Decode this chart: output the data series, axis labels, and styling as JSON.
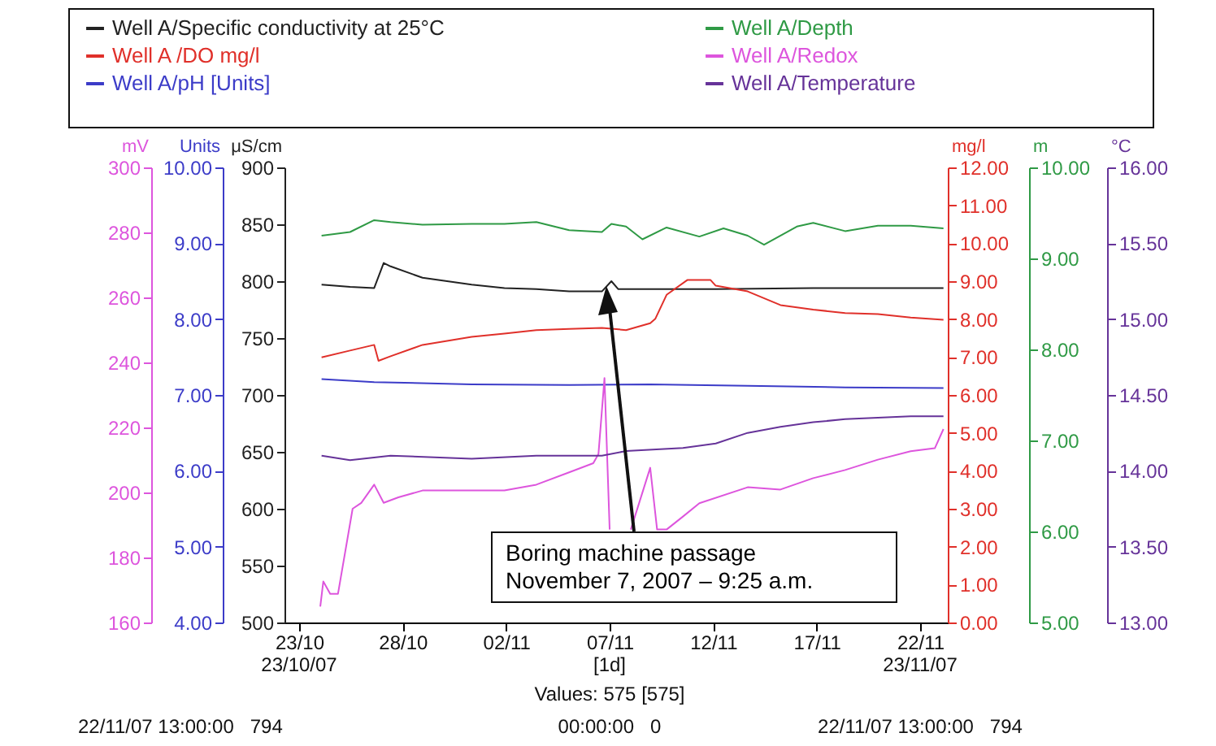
{
  "chart_data": [
    {
      "type": "line",
      "xlim": [
        "2007-10-22T07:00",
        "2007-11-23T08:00"
      ],
      "xticks": [
        {
          "value": "2007-10-23",
          "label": "23/10"
        },
        {
          "value": "2007-10-28",
          "label": "28/10"
        },
        {
          "value": "2007-11-02",
          "label": "02/11"
        },
        {
          "value": "2007-11-07",
          "label": "07/11"
        },
        {
          "value": "2007-11-12",
          "label": "12/11"
        },
        {
          "value": "2007-11-17",
          "label": "17/11"
        },
        {
          "value": "2007-11-22",
          "label": "22/11"
        }
      ],
      "ylabel": "Units",
      "ylim": [
        4,
        10
      ],
      "yticks": [
        {
          "value": 4,
          "label": "4.00"
        },
        {
          "value": 5,
          "label": "5.00"
        },
        {
          "value": 6,
          "label": "6.00"
        },
        {
          "value": 7,
          "label": "7.00"
        },
        {
          "value": 8,
          "label": "8.00"
        },
        {
          "value": 9,
          "label": "9.00"
        },
        {
          "value": 10,
          "label": "10.00"
        }
      ],
      "y2label": "mg/l",
      "y2lim": [
        0,
        12
      ],
      "y2ticks": [
        {
          "value": 0,
          "label": "0.00"
        },
        {
          "value": 1,
          "label": "1.00"
        },
        {
          "value": 2,
          "label": "2.00"
        },
        {
          "value": 3,
          "label": "3.00"
        },
        {
          "value": 4,
          "label": "4.00"
        },
        {
          "value": 5,
          "label": "5.00"
        },
        {
          "value": 6,
          "label": "6.00"
        },
        {
          "value": 7,
          "label": "7.00"
        },
        {
          "value": 8,
          "label": "8.00"
        },
        {
          "value": 9,
          "label": "9.00"
        },
        {
          "value": 10,
          "label": "10.00"
        },
        {
          "value": 11,
          "label": "11.00"
        },
        {
          "value": 12,
          "label": "12.00"
        }
      ],
      "y3label": "μS/cm",
      "y3lim": [
        500,
        900
      ],
      "y3ticks": [
        500,
        550,
        600,
        650,
        700,
        750,
        800,
        850,
        900
      ],
      "legend": "top",
      "series": [
        {
          "name": "Well A/Specific conductivity at 25°C",
          "color": "#222222",
          "axis": "y3",
          "x": [
            "2007-10-24T02:00",
            "2007-10-25T11:00",
            "2007-10-26T15:00",
            "2007-10-27T02:00",
            "2007-10-27T10:00",
            "2007-10-28T23:00",
            "2007-10-31T08:00",
            "2007-11-01T22:00",
            "2007-11-03T11:00",
            "2007-11-05T01:00",
            "2007-11-06T15:00",
            "2007-11-07T02:00",
            "2007-11-07T10:00",
            "2007-11-08T23:00",
            "2007-11-12T03:00",
            "2007-11-16T20:00",
            "2007-11-23T03:00"
          ],
          "values": [
            797,
            795,
            794,
            816,
            813,
            803,
            797,
            794,
            793,
            791,
            791,
            800,
            793,
            793,
            793,
            794,
            794
          ]
        },
        {
          "name": "Well A /DO mg/l",
          "color": "#e0302a",
          "axis": "y2",
          "x": [
            "2007-10-24T02:00",
            "2007-10-25T11:00",
            "2007-10-26T15:00",
            "2007-10-26T20:00",
            "2007-10-27T10:00",
            "2007-10-28T23:00",
            "2007-10-31T08:00",
            "2007-11-01T22:00",
            "2007-11-03T11:00",
            "2007-11-05T01:00",
            "2007-11-06T15:00",
            "2007-11-07T19:00",
            "2007-11-08T23:00",
            "2007-11-09T05:00",
            "2007-11-09T18:00",
            "2007-11-10T18:00",
            "2007-11-11T21:00",
            "2007-11-12T03:00",
            "2007-11-13T16:00",
            "2007-11-15T06:00",
            "2007-11-16T20:00",
            "2007-11-18T09:00",
            "2007-11-19T23:00",
            "2007-11-21T13:00",
            "2007-11-23T03:00"
          ],
          "values": [
            6.99,
            7.17,
            7.32,
            6.9,
            7.02,
            7.32,
            7.53,
            7.62,
            7.71,
            7.74,
            7.77,
            7.71,
            7.89,
            8.01,
            8.64,
            9.03,
            9.03,
            8.88,
            8.73,
            8.37,
            8.25,
            8.16,
            8.13,
            8.04,
            7.98
          ]
        },
        {
          "name": "Well A/pH [Units]",
          "color": "#3c3cc8",
          "axis": "y",
          "x": [
            "2007-10-24T02:00",
            "2007-10-26T15:00",
            "2007-10-31T08:00",
            "2007-11-05T01:00",
            "2007-11-08T23:00",
            "2007-11-13T16:00",
            "2007-11-18T09:00",
            "2007-11-23T03:00"
          ],
          "values": [
            7.21,
            7.17,
            7.14,
            7.13,
            7.14,
            7.12,
            7.1,
            7.09
          ]
        }
      ],
      "annotations": [
        "Boring machine passage\nNovember 7, 2007 – 9:25 a.m.",
        "23/10/07",
        "[1d]",
        "23/11/07",
        "Values: 575 [575]",
        "22/11/07 13:00:00   794",
        "00:00:00   0",
        "22/11/07 13:00:00   794"
      ]
    },
    {
      "type": "line",
      "xlim": [
        "2007-10-22T07:00",
        "2007-11-23T08:00"
      ],
      "tick_labels": "y",
      "ylabel": "mV",
      "ylim": [
        160,
        300
      ],
      "yticks": [
        160,
        180,
        200,
        220,
        240,
        260,
        280,
        300
      ],
      "y2label": "m",
      "y2lim": [
        5,
        10
      ],
      "y2ticks": [
        {
          "value": 5,
          "label": "5.00"
        },
        {
          "value": 6,
          "label": "6.00"
        },
        {
          "value": 7,
          "label": "7.00"
        },
        {
          "value": 8,
          "label": "8.00"
        },
        {
          "value": 9,
          "label": "9.00"
        },
        {
          "value": 10,
          "label": "10.00"
        }
      ],
      "y3label": "°C",
      "y3lim": [
        13,
        16
      ],
      "y3ticks": [
        {
          "value": 13,
          "label": "13.00"
        },
        {
          "value": 13.5,
          "label": "13.50"
        },
        {
          "value": 14,
          "label": "14.00"
        },
        {
          "value": 14.5,
          "label": "14.50"
        },
        {
          "value": 15,
          "label": "15.00"
        },
        {
          "value": 15.5,
          "label": "15.50"
        },
        {
          "value": 16,
          "label": "16.00"
        }
      ],
      "legend": "top",
      "series": [
        {
          "name": "Well A/Depth",
          "color": "#2f9a45",
          "axis": "y2",
          "x": [
            "2007-10-24T02:00",
            "2007-10-25T11:00",
            "2007-10-26T15:00",
            "2007-10-27T10:00",
            "2007-10-28T23:00",
            "2007-10-31T08:00",
            "2007-11-01T22:00",
            "2007-11-03T11:00",
            "2007-11-05T01:00",
            "2007-11-06T15:00",
            "2007-11-07T02:00",
            "2007-11-07T19:00",
            "2007-11-08T14:00",
            "2007-11-09T18:00",
            "2007-11-11T08:00",
            "2007-11-12T12:00",
            "2007-11-13T16:00",
            "2007-11-14T11:00",
            "2007-11-16T01:00",
            "2007-11-16T20:00",
            "2007-11-18T09:00",
            "2007-11-19T23:00",
            "2007-11-21T13:00",
            "2007-11-23T03:00"
          ],
          "values": [
            9.25,
            9.29,
            9.42,
            9.4,
            9.37,
            9.38,
            9.38,
            9.4,
            9.31,
            9.29,
            9.38,
            9.35,
            9.21,
            9.34,
            9.24,
            9.33,
            9.25,
            9.15,
            9.35,
            9.39,
            9.3,
            9.36,
            9.36,
            9.33
          ]
        },
        {
          "name": "Well A/Redox",
          "color": "#dd55dd",
          "axis": "y",
          "x": [
            "2007-10-24T00:30",
            "2007-10-24T04:00",
            "2007-10-24T12:00",
            "2007-10-24T21:00",
            "2007-10-25T14:00",
            "2007-10-26T00:00",
            "2007-10-26T15:00",
            "2007-10-27T02:00",
            "2007-10-27T19:00",
            "2007-10-28T23:00",
            "2007-10-31T08:00",
            "2007-11-01T22:00",
            "2007-11-03T11:00",
            "2007-11-05T01:00",
            "2007-11-06T05:00",
            "2007-11-06T11:00",
            "2007-11-06T18:00",
            "2007-11-07T00:00",
            "2007-11-07T12:00",
            "2007-11-08T00:30",
            "2007-11-08T23:00",
            "2007-11-09T07:00",
            "2007-11-09T18:00",
            "2007-11-10T13:00",
            "2007-11-11T08:00",
            "2007-11-13T16:00",
            "2007-11-15T06:00",
            "2007-11-16T20:00",
            "2007-11-18T09:00",
            "2007-11-19T23:00",
            "2007-11-21T13:00",
            "2007-11-22T17:00",
            "2007-11-23T03:00"
          ],
          "values": [
            164.9,
            172.6,
            168.8,
            168.8,
            195,
            196.8,
            202.4,
            196.8,
            198.5,
            200.6,
            200.6,
            200.6,
            202.4,
            206.2,
            209,
            211.8,
            235.2,
            188.6,
            null,
            188.6,
            207.6,
            188.6,
            188.6,
            192.6,
            196.7,
            201.6,
            200.9,
            204.4,
            206.9,
            210.1,
            212.7,
            213.6,
            219.5
          ]
        },
        {
          "name": "Well A/Temperature",
          "color": "#663399",
          "axis": "y3",
          "x": [
            "2007-10-24T02:00",
            "2007-10-25T11:00",
            "2007-10-27T10:00",
            "2007-10-31T08:00",
            "2007-11-03T11:00",
            "2007-11-06T15:00",
            "2007-11-07T19:00",
            "2007-11-10T13:00",
            "2007-11-12T03:00",
            "2007-11-13T16:00",
            "2007-11-15T06:00",
            "2007-11-16T20:00",
            "2007-11-18T09:00",
            "2007-11-19T23:00",
            "2007-11-21T13:00",
            "2007-11-23T03:00"
          ],
          "values": [
            14.1,
            14.07,
            14.1,
            14.08,
            14.1,
            14.1,
            14.13,
            14.15,
            14.18,
            14.25,
            14.29,
            14.32,
            14.34,
            14.35,
            14.36,
            14.36
          ]
        }
      ]
    }
  ]
}
